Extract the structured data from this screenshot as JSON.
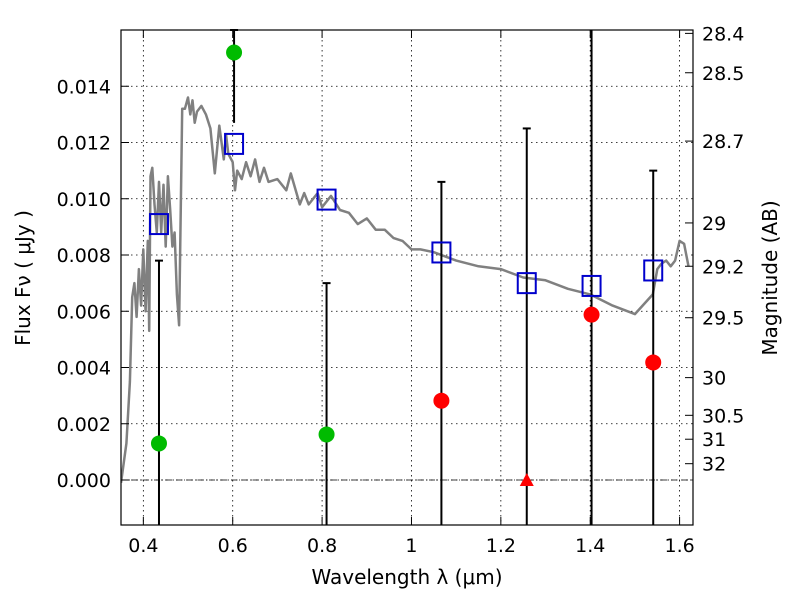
{
  "chart_data": {
    "type": "scatter",
    "title": "",
    "xlabel": "Wavelength  λ (μm)",
    "ylabel": "Flux  Fν  ( μJy )",
    "ylabel_right": "Magnitude (AB)",
    "xlim": [
      0.35,
      1.63
    ],
    "ylim": [
      -0.0016,
      0.016
    ],
    "grid": true,
    "x_ticks": [
      0.4,
      0.6,
      0.8,
      1.0,
      1.2,
      1.4,
      1.6
    ],
    "x_tick_labels": [
      "0.4",
      "0.6",
      "0.8",
      "1",
      "1.2",
      "1.4",
      "1.6"
    ],
    "y_ticks": [
      0.0,
      0.002,
      0.004,
      0.006,
      0.008,
      0.01,
      0.012,
      0.014
    ],
    "y_tick_labels": [
      "0.000",
      "0.002",
      "0.004",
      "0.006",
      "0.008",
      "0.010",
      "0.012",
      "0.014"
    ],
    "right_ticks": [
      {
        "label": "28.4",
        "flux": 0.01588
      },
      {
        "label": "28.5",
        "flux": 0.01448
      },
      {
        "label": "28.7",
        "flux": 0.01205
      },
      {
        "label": "29",
        "flux": 0.00914
      },
      {
        "label": "29.2",
        "flux": 0.0076
      },
      {
        "label": "29.5",
        "flux": 0.00577
      },
      {
        "label": "30",
        "flux": 0.00364
      },
      {
        "label": "30.5",
        "flux": 0.0023
      },
      {
        "label": "31",
        "flux": 0.00145
      },
      {
        "label": "32",
        "flux": 0.00058
      }
    ],
    "series": [
      {
        "style": "line",
        "color": "#808080",
        "x": [
          0.35,
          0.362,
          0.37,
          0.375,
          0.38,
          0.385,
          0.39,
          0.395,
          0.4,
          0.405,
          0.41,
          0.413,
          0.416,
          0.42,
          0.425,
          0.43,
          0.435,
          0.44,
          0.445,
          0.45,
          0.455,
          0.46,
          0.465,
          0.47,
          0.475,
          0.48,
          0.487,
          0.493,
          0.5,
          0.505,
          0.51,
          0.515,
          0.52,
          0.53,
          0.54,
          0.55,
          0.56,
          0.57,
          0.58,
          0.585,
          0.59,
          0.6,
          0.605,
          0.61,
          0.62,
          0.63,
          0.64,
          0.65,
          0.66,
          0.67,
          0.68,
          0.7,
          0.72,
          0.73,
          0.75,
          0.76,
          0.77,
          0.79,
          0.8,
          0.82,
          0.84,
          0.86,
          0.88,
          0.9,
          0.92,
          0.94,
          0.96,
          0.98,
          1.0,
          1.02,
          1.05,
          1.1,
          1.15,
          1.2,
          1.25,
          1.3,
          1.35,
          1.4,
          1.45,
          1.5,
          1.54,
          1.55,
          1.56,
          1.57,
          1.58,
          1.59,
          1.6,
          1.61,
          1.62
        ],
        "values": [
          -0.0001,
          0.0013,
          0.0035,
          0.0065,
          0.007,
          0.0058,
          0.0075,
          0.0062,
          0.0082,
          0.006,
          0.0085,
          0.0053,
          0.0108,
          0.0111,
          0.0098,
          0.0088,
          0.0106,
          0.0088,
          0.0105,
          0.0083,
          0.0108,
          0.0096,
          0.0083,
          0.0088,
          0.0066,
          0.0055,
          0.0132,
          0.0132,
          0.0136,
          0.013,
          0.0135,
          0.0127,
          0.0131,
          0.0133,
          0.013,
          0.0125,
          0.0109,
          0.0126,
          0.0114,
          0.0123,
          0.0116,
          0.0113,
          0.0103,
          0.011,
          0.0107,
          0.0113,
          0.0108,
          0.0114,
          0.0106,
          0.0111,
          0.0106,
          0.0107,
          0.0103,
          0.0109,
          0.0098,
          0.0102,
          0.0098,
          0.0102,
          0.0097,
          0.0101,
          0.0096,
          0.0095,
          0.0091,
          0.0093,
          0.0089,
          0.0089,
          0.0086,
          0.0085,
          0.0082,
          0.0082,
          0.0081,
          0.0078,
          0.0076,
          0.0075,
          0.0072,
          0.0071,
          0.0068,
          0.0066,
          0.0062,
          0.0059,
          0.0066,
          0.0075,
          0.0077,
          0.0078,
          0.0076,
          0.0078,
          0.0085,
          0.0084,
          0.0076
        ]
      },
      {
        "style": "open-square",
        "color": "#0000cc",
        "x": [
          0.435,
          0.603,
          0.81,
          1.067,
          1.258,
          1.403,
          1.541
        ],
        "values": [
          0.0091,
          0.01195,
          0.00997,
          0.00809,
          0.007,
          0.0069,
          0.00745
        ]
      },
      {
        "style": "filled-circle",
        "color": "#00bb00",
        "x": [
          0.435,
          0.603,
          0.81
        ],
        "values": [
          0.0013,
          0.0152,
          0.00162
        ]
      },
      {
        "style": "filled-circle",
        "color": "#ff0000",
        "x": [
          1.067,
          1.403,
          1.541
        ],
        "values": [
          0.00282,
          0.00588,
          0.00418
        ]
      },
      {
        "style": "filled-triangle",
        "color": "#ff0000",
        "x": [
          1.258
        ],
        "values": [
          0.0
        ]
      }
    ],
    "error_bars": [
      {
        "x": 0.435,
        "low": -0.0016,
        "high": 0.0078,
        "cap": true
      },
      {
        "x": 0.603,
        "low": 0.0127,
        "high": 0.016,
        "cap": true
      },
      {
        "x": 0.81,
        "low": -0.0016,
        "high": 0.007,
        "cap": true
      },
      {
        "x": 1.067,
        "low": -0.0016,
        "high": 0.0106,
        "cap": true
      },
      {
        "x": 1.258,
        "low": -0.0016,
        "high": 0.0125,
        "cap": true
      },
      {
        "x": 1.403,
        "low": -0.0016,
        "high": 0.016,
        "cap": false
      },
      {
        "x": 1.541,
        "low": -0.0016,
        "high": 0.011,
        "cap": true
      }
    ],
    "zero_line": true
  }
}
